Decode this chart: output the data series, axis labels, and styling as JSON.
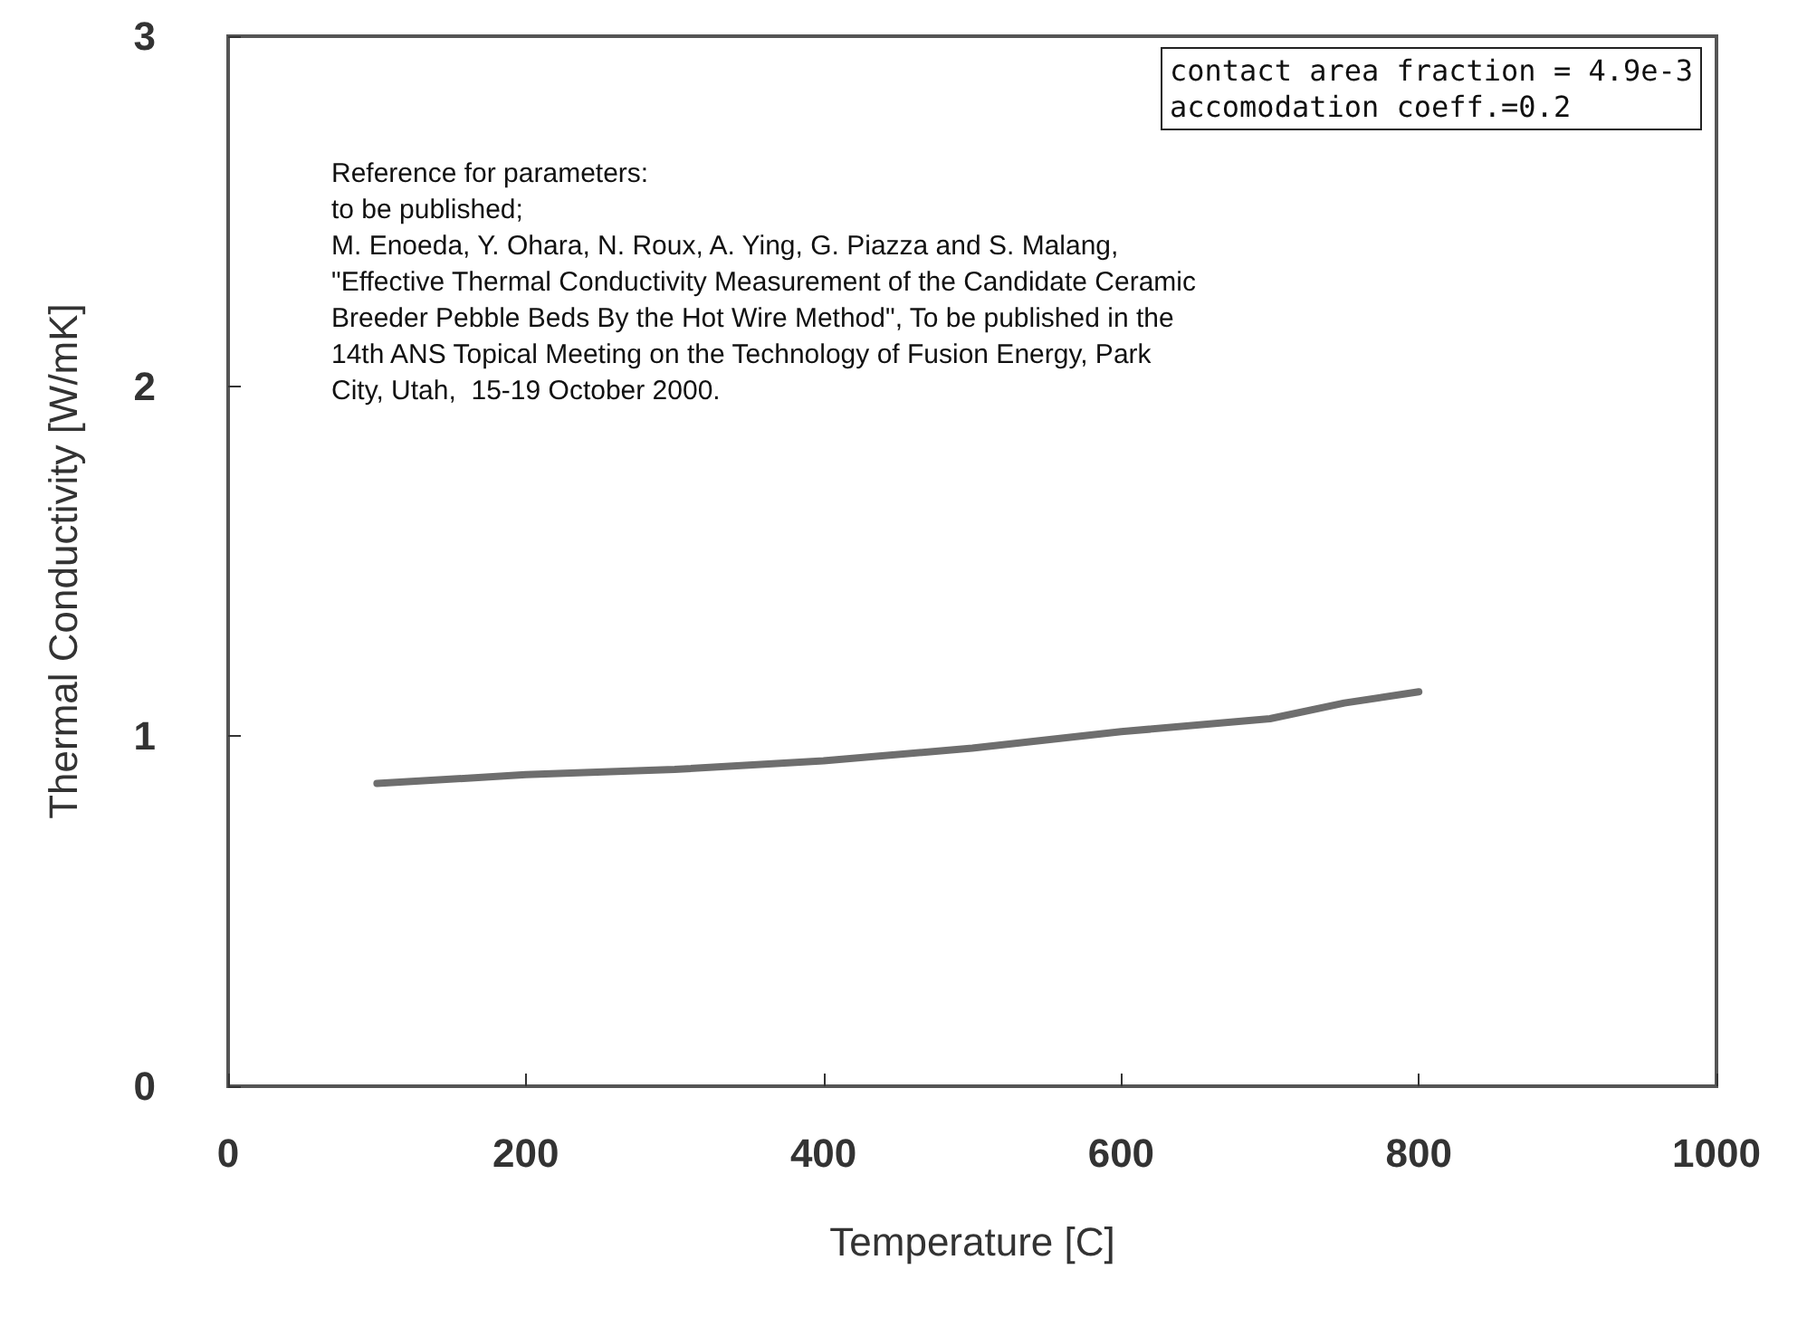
{
  "chart_data": {
    "type": "line",
    "xlabel": "Temperature [C]",
    "ylabel": "Thermal Conductivity [W/mK]",
    "x": [
      100,
      200,
      300,
      400,
      500,
      600,
      700,
      750,
      800
    ],
    "series": [
      {
        "color": "#6e6e6e",
        "values": [
          0.865,
          0.89,
          0.905,
          0.93,
          0.966,
          1.013,
          1.05,
          1.095,
          1.127
        ]
      }
    ],
    "xlim": [
      0,
      1000
    ],
    "xticks": [
      0,
      200,
      400,
      600,
      800,
      1000
    ],
    "ylim": [
      0,
      3
    ],
    "yticks": [
      0,
      1,
      2,
      3
    ],
    "grid": false,
    "marker": "none",
    "line_style": "solid",
    "annotations": [
      "Reference for parameters:\nto be published;\nM. Enoeda, Y. Ohara, N. Roux, A. Ying, G. Piazza and S. Malang,\n\"Effective Thermal Conductivity Measurement of the Candidate Ceramic\nBreeder Pebble Beds By the Hot Wire Method\", To be published in the\n14th ANS Topical Meeting on the Technology of Fusion Energy, Park\nCity, Utah,  15-19 October 2000.",
      "contact area fraction = 4.9e-3\naccomodation coeff.=0.2"
    ]
  }
}
